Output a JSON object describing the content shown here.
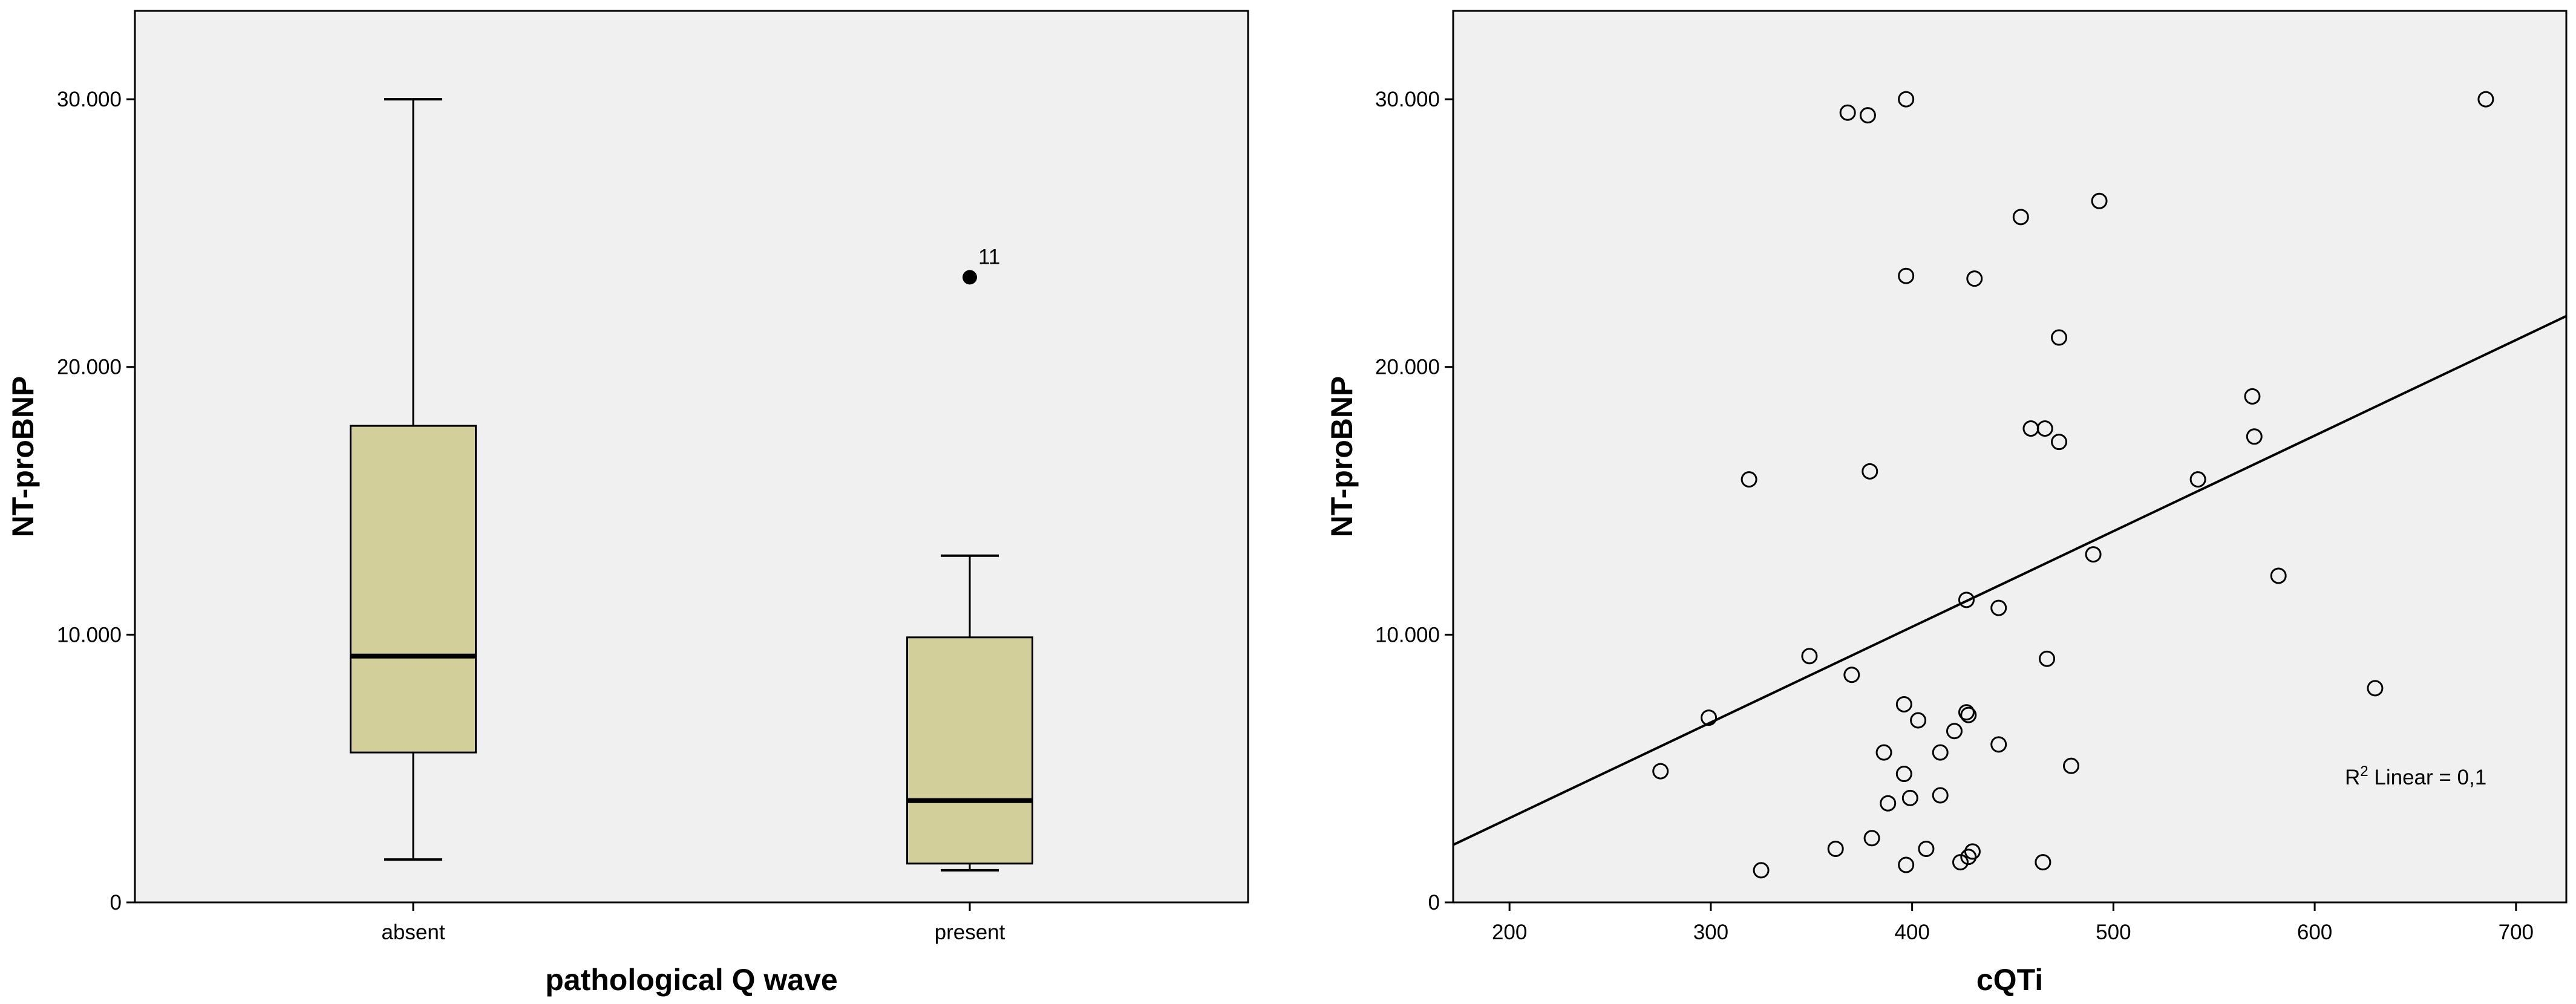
{
  "chart_data": [
    {
      "type": "box",
      "xlabel": "pathological Q wave",
      "ylabel": "NT-proBNP",
      "ylim": [
        0,
        33300
      ],
      "yticks": [
        0,
        10000,
        20000,
        30000
      ],
      "ytick_labels": [
        "0",
        "10.000",
        "20.000",
        "30.000"
      ],
      "categories": [
        "absent",
        "present"
      ],
      "boxes": [
        {
          "category": "absent",
          "whisker_low": 1600,
          "q1": 5600,
          "median": 9200,
          "q3": 17800,
          "whisker_high": 30000
        },
        {
          "category": "present",
          "whisker_low": 1200,
          "q1": 1450,
          "median": 3800,
          "q3": 9900,
          "whisker_high": 12950
        }
      ],
      "outliers": [
        {
          "category": "present",
          "value": 23350,
          "label": "11"
        }
      ],
      "grid": false,
      "colors": {
        "box_fill": "#d3cf9a",
        "background": "#f0f0f0"
      }
    },
    {
      "type": "scatter",
      "xlabel": "cQTi",
      "ylabel": "NT-proBNP",
      "xlim": [
        172,
        725
      ],
      "ylim": [
        0,
        33300
      ],
      "xticks": [
        200,
        300,
        400,
        500,
        600,
        700
      ],
      "yticks": [
        0,
        10000,
        20000,
        30000
      ],
      "ytick_labels": [
        "0",
        "10.000",
        "20.000",
        "30.000"
      ],
      "points": [
        [
          275,
          4900
        ],
        [
          299,
          6900
        ],
        [
          319,
          15800
        ],
        [
          325,
          1200
        ],
        [
          349,
          9200
        ],
        [
          362,
          2000
        ],
        [
          368,
          29500
        ],
        [
          370,
          8500
        ],
        [
          378,
          29400
        ],
        [
          379,
          16100
        ],
        [
          380,
          2400
        ],
        [
          386,
          5600
        ],
        [
          388,
          3700
        ],
        [
          396,
          7400
        ],
        [
          396,
          4800
        ],
        [
          397,
          30000
        ],
        [
          397,
          23400
        ],
        [
          397,
          1400
        ],
        [
          399,
          3900
        ],
        [
          403,
          6800
        ],
        [
          407,
          2000
        ],
        [
          414,
          4000
        ],
        [
          414,
          5600
        ],
        [
          421,
          6400
        ],
        [
          424,
          1500
        ],
        [
          427,
          11300
        ],
        [
          427,
          7100
        ],
        [
          428,
          7000
        ],
        [
          428,
          1700
        ],
        [
          430,
          1900
        ],
        [
          431,
          23300
        ],
        [
          443,
          11000
        ],
        [
          443,
          5900
        ],
        [
          454,
          25600
        ],
        [
          459,
          17700
        ],
        [
          465,
          1500
        ],
        [
          466,
          17700
        ],
        [
          467,
          9100
        ],
        [
          473,
          21100
        ],
        [
          473,
          17200
        ],
        [
          479,
          5100
        ],
        [
          490,
          13000
        ],
        [
          493,
          26200
        ],
        [
          542,
          15800
        ],
        [
          569,
          18900
        ],
        [
          570,
          17400
        ],
        [
          582,
          12200
        ],
        [
          630,
          8000
        ],
        [
          685,
          30000
        ]
      ],
      "fit_line": {
        "x": [
          172,
          725
        ],
        "y": [
          2150,
          21900
        ]
      },
      "annotation": {
        "prefix": "R",
        "superscript": "2",
        "text": " Linear = 0,1"
      },
      "grid": false,
      "colors": {
        "marker_edge": "#000000",
        "line": "#000000",
        "background": "#f0f0f0"
      }
    }
  ]
}
